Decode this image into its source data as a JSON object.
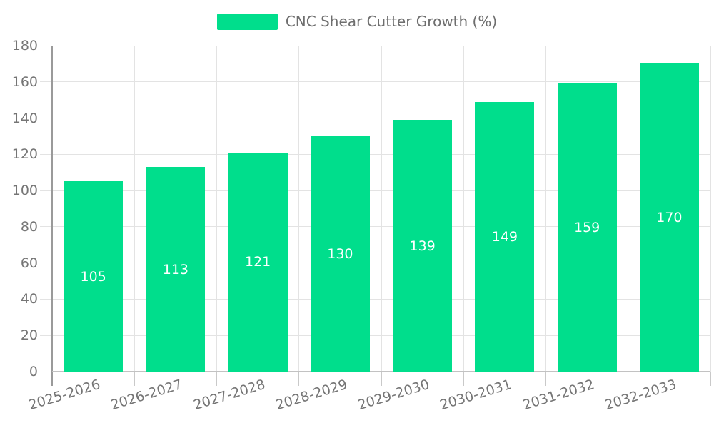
{
  "legend": {
    "label": "CNC Shear Cutter Growth (%)"
  },
  "colors": {
    "bar": "#00DE8C",
    "grid": "#e3e3e3",
    "axis_y": "#9a9a9a",
    "axis_x": "#c2c2c2",
    "tick": "#c9c9c9",
    "axis_text": "#757575",
    "legend_text": "#6e6e6e",
    "value_label": "#ffffff",
    "background": "#ffffff"
  },
  "chart_data": {
    "type": "bar",
    "title": "CNC Shear Cutter Growth (%)",
    "categories": [
      "2025-2026",
      "2026-2027",
      "2027-2028",
      "2028-2029",
      "2029-2030",
      "2030-2031",
      "2031-2032",
      "2032-2033"
    ],
    "values": [
      105,
      113,
      121,
      130,
      139,
      149,
      159,
      170
    ],
    "xlabel": "",
    "ylabel": "",
    "ylim": [
      0,
      180
    ],
    "ytick_step": 20,
    "ytick_labels": [
      "0",
      "20",
      "40",
      "60",
      "80",
      "100",
      "120",
      "140",
      "160",
      "180"
    ],
    "grid": true,
    "legend_position": "top-center",
    "value_labels": "inside-middle",
    "x_label_rotation_deg": -17
  }
}
